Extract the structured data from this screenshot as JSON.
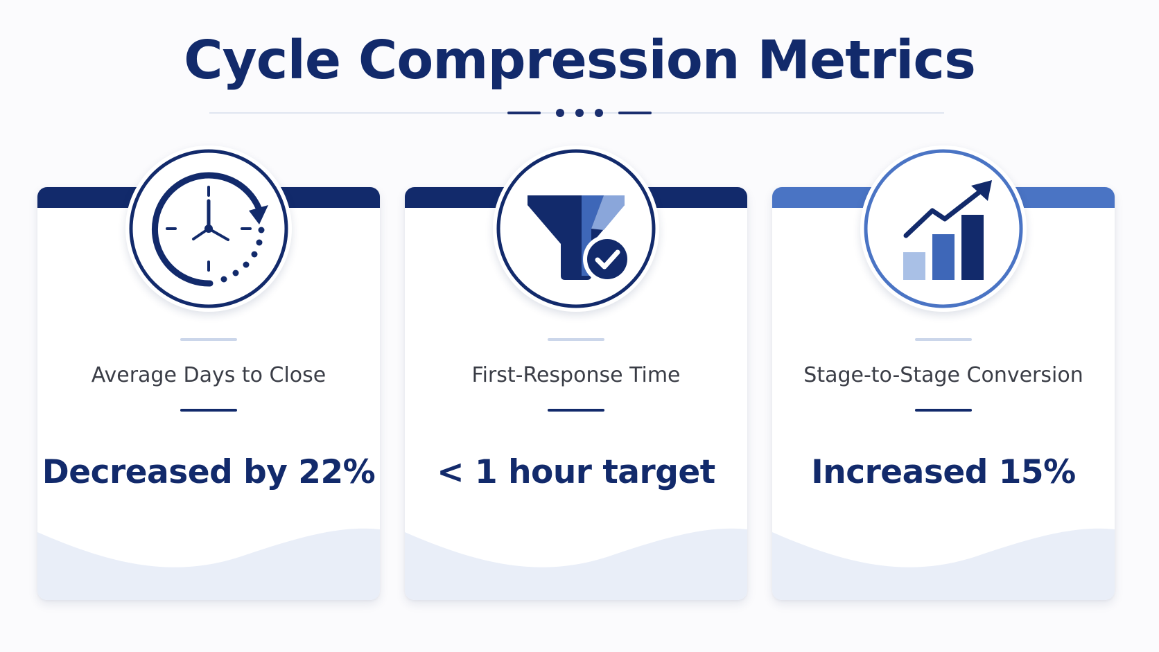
{
  "title": "Cycle Compression Metrics",
  "colors": {
    "navy": "#122a6b",
    "medium_blue": "#3e67b8",
    "light_blue": "#a9c0e6",
    "card_wave": "#e9eef8"
  },
  "cards": [
    {
      "label": "Average Days to Close",
      "value": "Decreased by 22%",
      "icon": "clock-arrow-icon",
      "accent": "#122a6b"
    },
    {
      "label": "First-Response Time",
      "value": "< 1 hour target",
      "icon": "funnel-check-icon",
      "accent": "#122a6b"
    },
    {
      "label": "Stage-to-Stage Conversion",
      "value": "Increased 15%",
      "icon": "growth-chart-icon",
      "accent": "#4a74c4"
    }
  ]
}
